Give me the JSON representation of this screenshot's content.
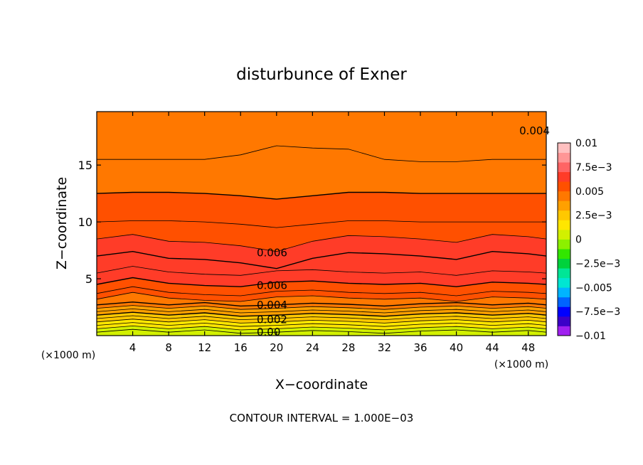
{
  "chart_data": {
    "type": "heatmap",
    "title": "disturbunce of Exner",
    "xlabel": "X−coordinate",
    "ylabel": "Z−coordinate",
    "x_unit": "(×1000 m)",
    "y_unit": "(×1000 m)",
    "xlim": [
      0,
      50
    ],
    "ylim": [
      0,
      19.7
    ],
    "x_ticks": [
      4,
      8,
      12,
      16,
      20,
      24,
      28,
      32,
      36,
      40,
      44,
      48
    ],
    "x_tick_labels": [
      "4",
      "8",
      "12",
      "16",
      "20",
      "24",
      "28",
      "32",
      "36",
      "40",
      "44",
      "48"
    ],
    "y_ticks": [
      5,
      10,
      15
    ],
    "y_tick_labels": [
      "5",
      "10",
      "15"
    ],
    "footer": "CONTOUR INTERVAL = 1.000E−03",
    "contour_interval": 0.001,
    "contour_labels": [
      {
        "text": "0.004",
        "x": 47.0,
        "z": 18.0
      },
      {
        "text": "0.006",
        "x": 17.8,
        "z": 7.3
      },
      {
        "text": "0.006",
        "x": 17.8,
        "z": 4.4
      },
      {
        "text": "0.004",
        "x": 17.8,
        "z": 2.7
      },
      {
        "text": "0.002",
        "x": 17.8,
        "z": 1.4
      },
      {
        "text": "0.00",
        "x": 17.8,
        "z": 0.3
      }
    ],
    "colorbar": {
      "min": -0.01,
      "max": 0.01,
      "tick_labels": [
        "0.01",
        "7.5e−3",
        "0.005",
        "2.5e−3",
        "0",
        "−2.5e−3",
        "−0.005",
        "−7.5e−3",
        "−0.01"
      ],
      "tick_values": [
        0.01,
        0.0075,
        0.005,
        0.0025,
        0,
        -0.0025,
        -0.005,
        -0.0075,
        -0.01
      ],
      "colors": [
        "#a020f0",
        "#3c00c8",
        "#0000ff",
        "#0064ff",
        "#00b4ff",
        "#00e6d2",
        "#00e696",
        "#00d23c",
        "#32e600",
        "#8cf000",
        "#d2f000",
        "#ffe600",
        "#ffc800",
        "#ffa000",
        "#ff7800",
        "#ff5000",
        "#ff3c28",
        "#ff6464",
        "#ff9696",
        "#ffc0c0"
      ]
    },
    "z_levels": [
      0,
      0.3,
      0.6,
      0.9,
      1.2,
      1.5,
      1.8,
      2.1,
      2.4,
      2.7,
      3.2,
      3.7,
      4.5,
      5.5,
      7,
      8.5,
      10,
      12.5,
      15.5,
      19.7
    ],
    "x_columns": [
      0,
      4,
      8,
      12,
      16,
      20,
      24,
      28,
      32,
      36,
      40,
      44,
      48,
      50
    ],
    "band_values": [
      0.0002,
      0.0008,
      0.0013,
      0.0018,
      0.0023,
      0.0028,
      0.0033,
      0.0038,
      0.0043,
      0.0048,
      0.0053,
      0.0058,
      0.0063,
      0.0066,
      0.0064,
      0.0058,
      0.0053,
      0.0048,
      0.0043
    ]
  }
}
